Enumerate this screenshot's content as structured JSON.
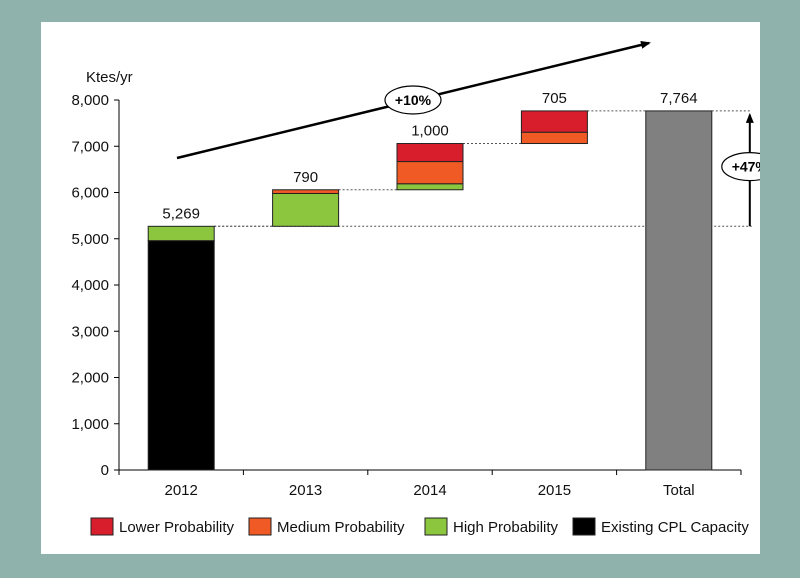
{
  "colors": {
    "background": "#8fb2ad",
    "panel": "#ffffff",
    "lower": "#d81e2c",
    "medium": "#f05a24",
    "high": "#8cc63f",
    "existing": "#000000",
    "total": "#808080"
  },
  "chart_data": {
    "type": "bar",
    "subtype": "waterfall",
    "ylabel": "Ktes/yr",
    "ylim": [
      0,
      8000
    ],
    "yticks": [
      "0",
      "1,000",
      "2,000",
      "3,000",
      "4,000",
      "5,000",
      "6,000",
      "7,000",
      "8,000"
    ],
    "ytick_values": [
      0,
      1000,
      2000,
      3000,
      4000,
      5000,
      6000,
      7000,
      8000
    ],
    "categories": [
      "2012",
      "2013",
      "2014",
      "2015",
      "Total"
    ],
    "series": [
      {
        "name": "Lower Probability",
        "key": "lower",
        "values": [
          0,
          0,
          390,
          460,
          0
        ]
      },
      {
        "name": "Medium Probability",
        "key": "medium",
        "values": [
          0,
          80,
          480,
          245,
          0
        ]
      },
      {
        "name": "High Probability",
        "key": "high",
        "values": [
          310,
          710,
          130,
          0,
          0
        ]
      },
      {
        "name": "Existing CPL Capacity",
        "key": "existing",
        "values": [
          4959,
          0,
          0,
          0,
          0
        ]
      }
    ],
    "bases": [
      0,
      5269,
      6059,
      7059,
      0
    ],
    "totals": [
      5269,
      790,
      1000,
      705,
      7764
    ],
    "total_bar_value": 7764,
    "bar_labels": [
      "5,269",
      "790",
      "1,000",
      "705",
      "7,764"
    ],
    "annotations": {
      "trend_label": "+10%",
      "increase_label": "+47%"
    },
    "grid": false,
    "legend_position": "bottom"
  }
}
